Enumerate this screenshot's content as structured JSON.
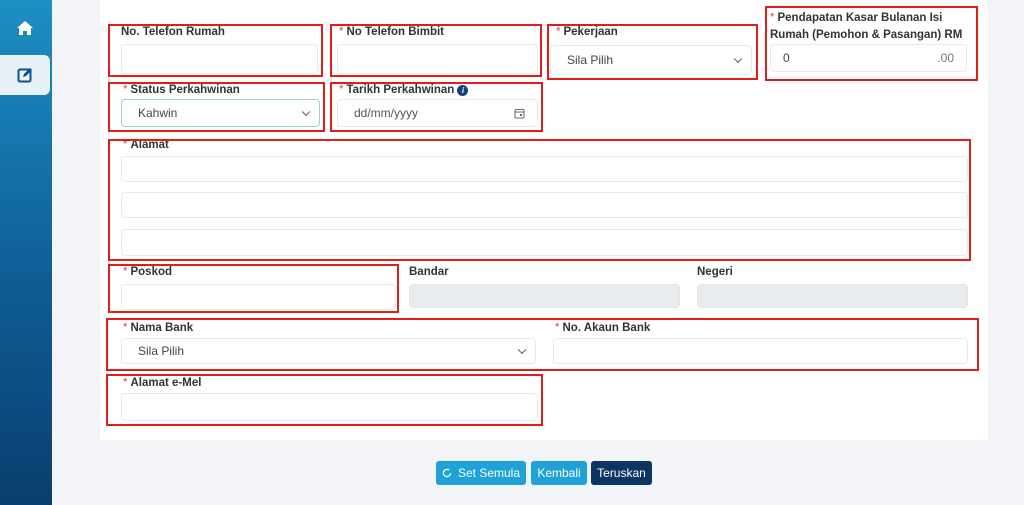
{
  "sidebar": {
    "items": [
      {
        "icon": "home-icon"
      },
      {
        "icon": "edit-icon",
        "active": true
      }
    ]
  },
  "form": {
    "tel_rumah": {
      "label": "No. Telefon Rumah",
      "value": ""
    },
    "tel_bimbit": {
      "label": "No Telefon Bimbit",
      "value": ""
    },
    "pekerjaan": {
      "label": "Pekerjaan",
      "value": "Sila Pilih"
    },
    "pendapatan": {
      "label1": "Pendapatan Kasar Bulanan Isi",
      "label2": "Rumah (Pemohon & Pasangan) RM",
      "value": "0",
      "suffix": ".00"
    },
    "status": {
      "label": "Status Perkahwinan",
      "value": "Kahwin"
    },
    "tarikh": {
      "label": "Tarikh Perkahwinan",
      "placeholder": "dd/mm/yyyy"
    },
    "alamat": {
      "label": "Alamat"
    },
    "poskod": {
      "label": "Poskod"
    },
    "bandar": {
      "label": "Bandar"
    },
    "negeri": {
      "label": "Negeri"
    },
    "bank": {
      "label": "Nama Bank",
      "value": "Sila Pilih"
    },
    "akaun": {
      "label": "No. Akaun Bank"
    },
    "emel": {
      "label": "Alamat e-Mel"
    },
    "required_mark": "*"
  },
  "buttons": {
    "reset": "Set Semula",
    "back": "Kembali",
    "next": "Teruskan"
  },
  "colors": {
    "primary": "#1fa3d6",
    "dark": "#0b3563",
    "annotation": "#e21b1b"
  }
}
